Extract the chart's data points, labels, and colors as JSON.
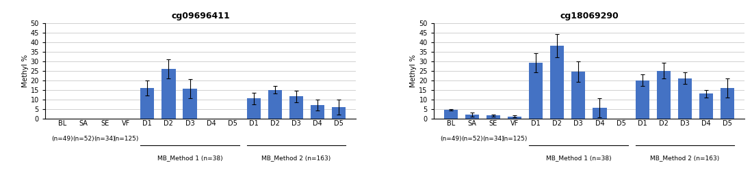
{
  "chart1": {
    "title": "cg09696411",
    "cat_labels": [
      "BL",
      "SA",
      "SE",
      "VF",
      "D1",
      "D2",
      "D3",
      "D4",
      "D5",
      "D1",
      "D2",
      "D3",
      "D4",
      "D5"
    ],
    "n_labels": [
      "(n=49)",
      "(n=52)",
      "(n=34)",
      "(n=125)",
      "",
      "",
      "",
      "",
      "",
      "",
      "",
      "",
      "",
      ""
    ],
    "values": [
      0,
      0,
      0,
      0,
      16,
      26,
      15.5,
      0,
      0,
      10.5,
      15,
      11.5,
      7,
      6
    ],
    "errors": [
      0,
      0,
      0,
      0,
      4,
      5,
      5,
      0,
      0,
      3,
      2,
      3,
      3,
      4
    ],
    "ylabel": "Methyl %",
    "ylim": [
      0,
      50
    ],
    "yticks": [
      0,
      5,
      10,
      15,
      20,
      25,
      30,
      35,
      40,
      45,
      50
    ],
    "group1_label": "MB_Method 1 (n=38)",
    "group2_label": "MB_Method 2 (n=163)",
    "group1_indices": [
      4,
      5,
      6,
      7,
      8
    ],
    "group2_indices": [
      9,
      10,
      11,
      12,
      13
    ],
    "bar_color": "#4472C4"
  },
  "chart2": {
    "title": "cg18069290",
    "cat_labels": [
      "BL",
      "SA",
      "SE",
      "VF",
      "D1",
      "D2",
      "D3",
      "D4",
      "D5",
      "D1",
      "D2",
      "D3",
      "D4",
      "D5"
    ],
    "n_labels": [
      "(n=49)",
      "(n=52)",
      "(n=34)",
      "(n=125)",
      "",
      "",
      "",
      "",
      "",
      "",
      "",
      "",
      "",
      ""
    ],
    "values": [
      4.5,
      2,
      1.5,
      1,
      29,
      38,
      24.5,
      5.5,
      0,
      20,
      25,
      21,
      13,
      16
    ],
    "errors": [
      0.5,
      1,
      0.5,
      0.5,
      5,
      6,
      5.5,
      5,
      0,
      3,
      4,
      3,
      2,
      5
    ],
    "ylabel": "Methyl %",
    "ylim": [
      0,
      50
    ],
    "yticks": [
      0,
      5,
      10,
      15,
      20,
      25,
      30,
      35,
      40,
      45,
      50
    ],
    "group1_label": "MB_Method 1 (n=38)",
    "group2_label": "MB_Method 2 (n=163)",
    "group1_indices": [
      4,
      5,
      6,
      7,
      8
    ],
    "group2_indices": [
      9,
      10,
      11,
      12,
      13
    ],
    "bar_color": "#4472C4"
  },
  "background_color": "#ffffff",
  "grid_color": "#d0d0d0",
  "bar_width": 0.65,
  "figsize": [
    10.99,
    2.8
  ],
  "dpi": 100
}
